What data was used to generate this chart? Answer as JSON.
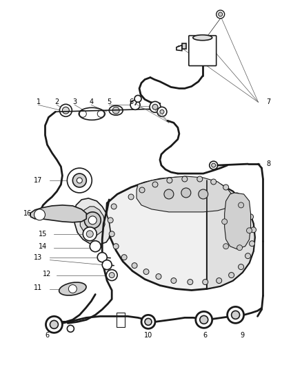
{
  "bg_color": "#ffffff",
  "line_color": "#1a1a1a",
  "label_color": "#000000",
  "fig_width": 4.38,
  "fig_height": 5.33,
  "dpi": 100,
  "label_fs": 7.0,
  "thin_lw": 0.5,
  "med_lw": 1.2,
  "thick_lw": 2.0
}
